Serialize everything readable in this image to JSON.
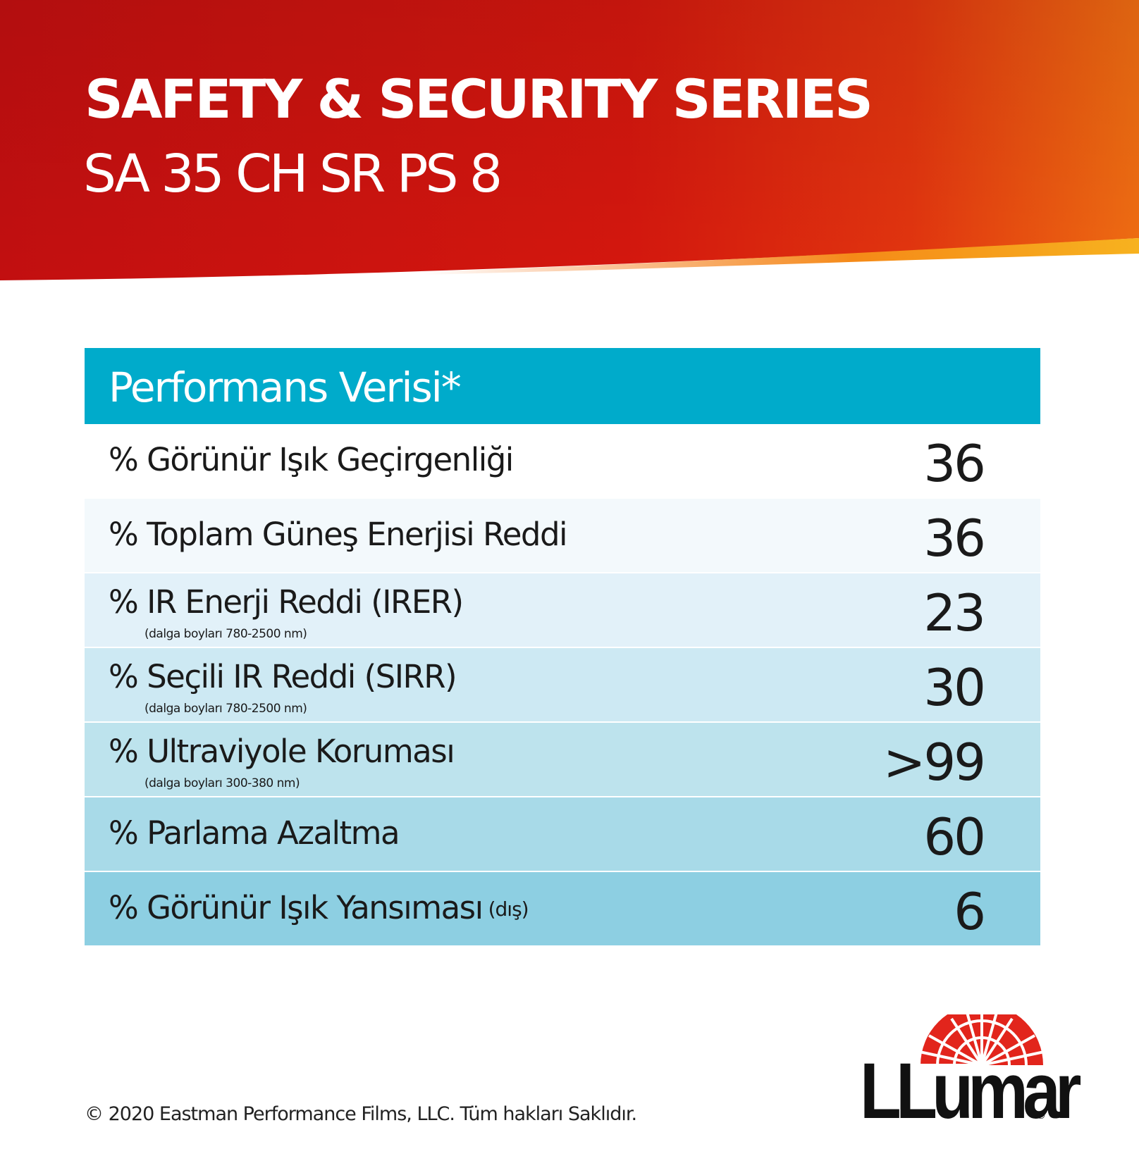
{
  "header": {
    "title": "SAFETY & SECURITY SERIES",
    "subtitle": "SA 35 CH SR PS 8"
  },
  "table": {
    "heading": "Performans Verisi*",
    "rows": [
      {
        "label": "% Görünür Işık Geçirgenliği",
        "note": "",
        "suffix": "",
        "value": "36",
        "bg": "#ffffff"
      },
      {
        "label": "% Toplam Güneş Enerjisi Reddi",
        "note": "",
        "suffix": "",
        "value": "36",
        "bg": "#f3f9fc"
      },
      {
        "label": "% IR Enerji Reddi (IRER)",
        "note": "(dalga boyları 780-2500 nm)",
        "suffix": "",
        "value": "23",
        "bg": "#e2f1f9"
      },
      {
        "label": "% Seçili IR Reddi (SIRR)",
        "note": "(dalga boyları 780-2500 nm)",
        "suffix": "",
        "value": "30",
        "bg": "#cde9f3"
      },
      {
        "label": "% Ultraviyole Koruması",
        "note": "(dalga boyları 300-380 nm)",
        "suffix": "",
        "value": ">99",
        "bg": "#bde3ed"
      },
      {
        "label": "% Parlama Azaltma",
        "note": "",
        "suffix": "",
        "value": "60",
        "bg": "#a8dae8"
      },
      {
        "label": "% Görünür Işık Yansıması",
        "note": "",
        "suffix": "(dış)",
        "value": "6",
        "bg": "#8dcfe2"
      }
    ]
  },
  "footer": {
    "copyright": "© 2020 Eastman Performance Films, LLC. Tüm hakları Saklıdır.",
    "logo_text": "LLumar",
    "logo_registered": "®",
    "logo_icon": "sunburst-icon"
  },
  "colors": {
    "header_red": "#c8100e",
    "header_orange": "#f26a10",
    "header_gold": "#f7a81b",
    "table_heading": "#00abcb",
    "logo_red": "#e2251c"
  }
}
